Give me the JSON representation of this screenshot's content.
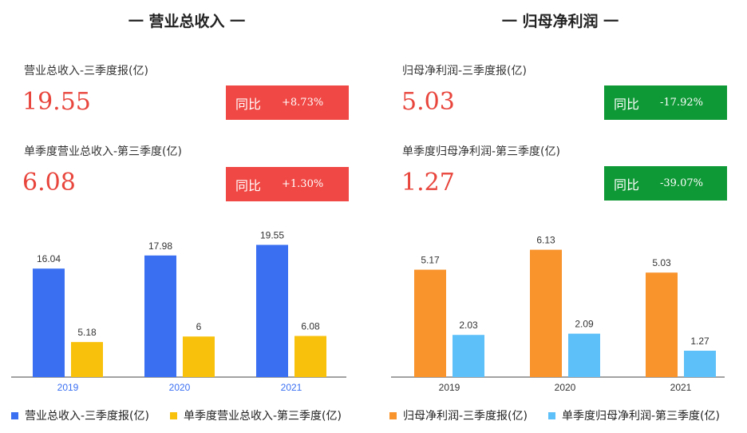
{
  "colors": {
    "red_text": "#e8453c",
    "badge_red": "#f04844",
    "badge_green": "#0f9936",
    "revenue_total": "#3a6ff2",
    "revenue_q3": "#f8c10c",
    "profit_total": "#f9932b",
    "profit_q3": "#5ec0f8",
    "axis_label_left": "#3a6ff2",
    "axis_label_right": "#333333"
  },
  "left": {
    "title": "一 营业总收入 一",
    "metric1": {
      "label": "营业总收入-三季度报(亿)",
      "value": "19.55",
      "badge_label": "同比",
      "badge_value": "+8.73%",
      "badge_color": "#f04844"
    },
    "metric2": {
      "label": "单季度营业总收入-第三季度(亿)",
      "value": "6.08",
      "badge_label": "同比",
      "badge_value": "+1.30%",
      "badge_color": "#f04844"
    },
    "legend": [
      "营业总收入-三季度报(亿)",
      "单季度营业总收入-第三季度(亿)"
    ]
  },
  "right": {
    "title": "一 归母净利润 一",
    "metric1": {
      "label": "归母净利润-三季度报(亿)",
      "value": "5.03",
      "badge_label": "同比",
      "badge_value": "-17.92%",
      "badge_color": "#0f9936"
    },
    "metric2": {
      "label": "单季度归母净利润-第三季度(亿)",
      "value": "1.27",
      "badge_label": "同比",
      "badge_value": "-39.07%",
      "badge_color": "#0f9936"
    },
    "legend": [
      "归母净利润-三季度报(亿)",
      "单季度归母净利润-第三季度(亿)"
    ]
  },
  "chart_data": [
    {
      "type": "bar",
      "categories": [
        "2019",
        "2020",
        "2021"
      ],
      "series": [
        {
          "name": "营业总收入-三季度报(亿)",
          "values": [
            16.04,
            17.98,
            19.55
          ],
          "labels": [
            "16.04",
            "17.98",
            "19.55"
          ],
          "color": "#3a6ff2"
        },
        {
          "name": "单季度营业总收入-第三季度(亿)",
          "values": [
            5.18,
            6,
            6.08
          ],
          "labels": [
            "5.18",
            "6",
            "6.08"
          ],
          "color": "#f8c10c"
        }
      ],
      "ylim": [
        0,
        21.5
      ],
      "grid": false,
      "legend": "bottom"
    },
    {
      "type": "bar",
      "categories": [
        "2019",
        "2020",
        "2021"
      ],
      "series": [
        {
          "name": "归母净利润-三季度报(亿)",
          "values": [
            5.17,
            6.13,
            5.03
          ],
          "labels": [
            "5.17",
            "6.13",
            "5.03"
          ],
          "color": "#f9932b"
        },
        {
          "name": "单季度归母净利润-第三季度(亿)",
          "values": [
            2.03,
            2.09,
            1.27
          ],
          "labels": [
            "2.03",
            "2.09",
            "1.27"
          ],
          "color": "#5ec0f8"
        }
      ],
      "ylim": [
        0,
        7
      ],
      "grid": false,
      "legend": "bottom"
    }
  ]
}
